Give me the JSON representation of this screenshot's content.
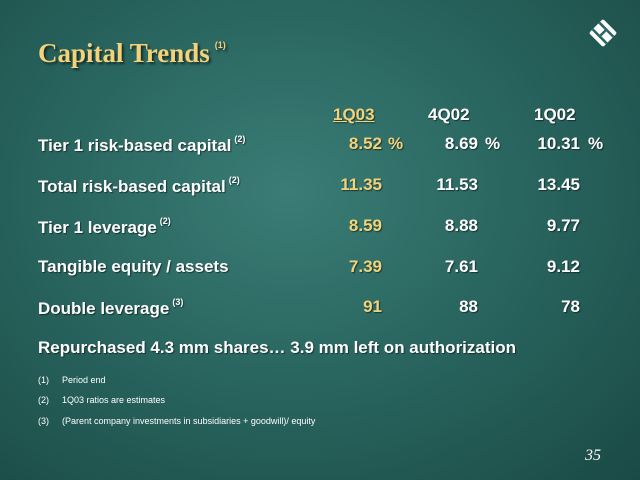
{
  "slide": {
    "title": "Capital Trends",
    "title_note": "(1)",
    "page_number": "35"
  },
  "table": {
    "columns": [
      "1Q03",
      "4Q02",
      "1Q02"
    ],
    "rows": [
      {
        "label": "Tier 1 risk-based capital",
        "note": "(2)",
        "values": [
          "8.52",
          "8.69",
          "10.31"
        ],
        "suffix": "%"
      },
      {
        "label": "Total risk-based capital",
        "note": "(2)",
        "values": [
          "11.35",
          "11.53",
          "13.45"
        ]
      },
      {
        "label": "Tier 1 leverage",
        "note": "(2)",
        "values": [
          "8.59",
          "8.88",
          "9.77"
        ]
      },
      {
        "label": "Tangible equity / assets",
        "values": [
          "7.39",
          "7.61",
          "9.12"
        ]
      },
      {
        "label": "Double leverage",
        "note": "(3)",
        "values": [
          "91",
          "88",
          "78"
        ]
      }
    ]
  },
  "summary": "Repurchased 4.3 mm shares… 3.9 mm left on authorization",
  "footnotes": [
    {
      "num": "(1)",
      "text": "Period end"
    },
    {
      "num": "(2)",
      "text": "1Q03 ratios are estimates"
    },
    {
      "num": "(3)",
      "text": "(Parent company investments in subsidiaries + goodwill)/ equity"
    }
  ],
  "colors": {
    "accent": "#f3d27a",
    "background": "#2a6660"
  },
  "icons": {
    "logo": "company-logo-icon"
  }
}
